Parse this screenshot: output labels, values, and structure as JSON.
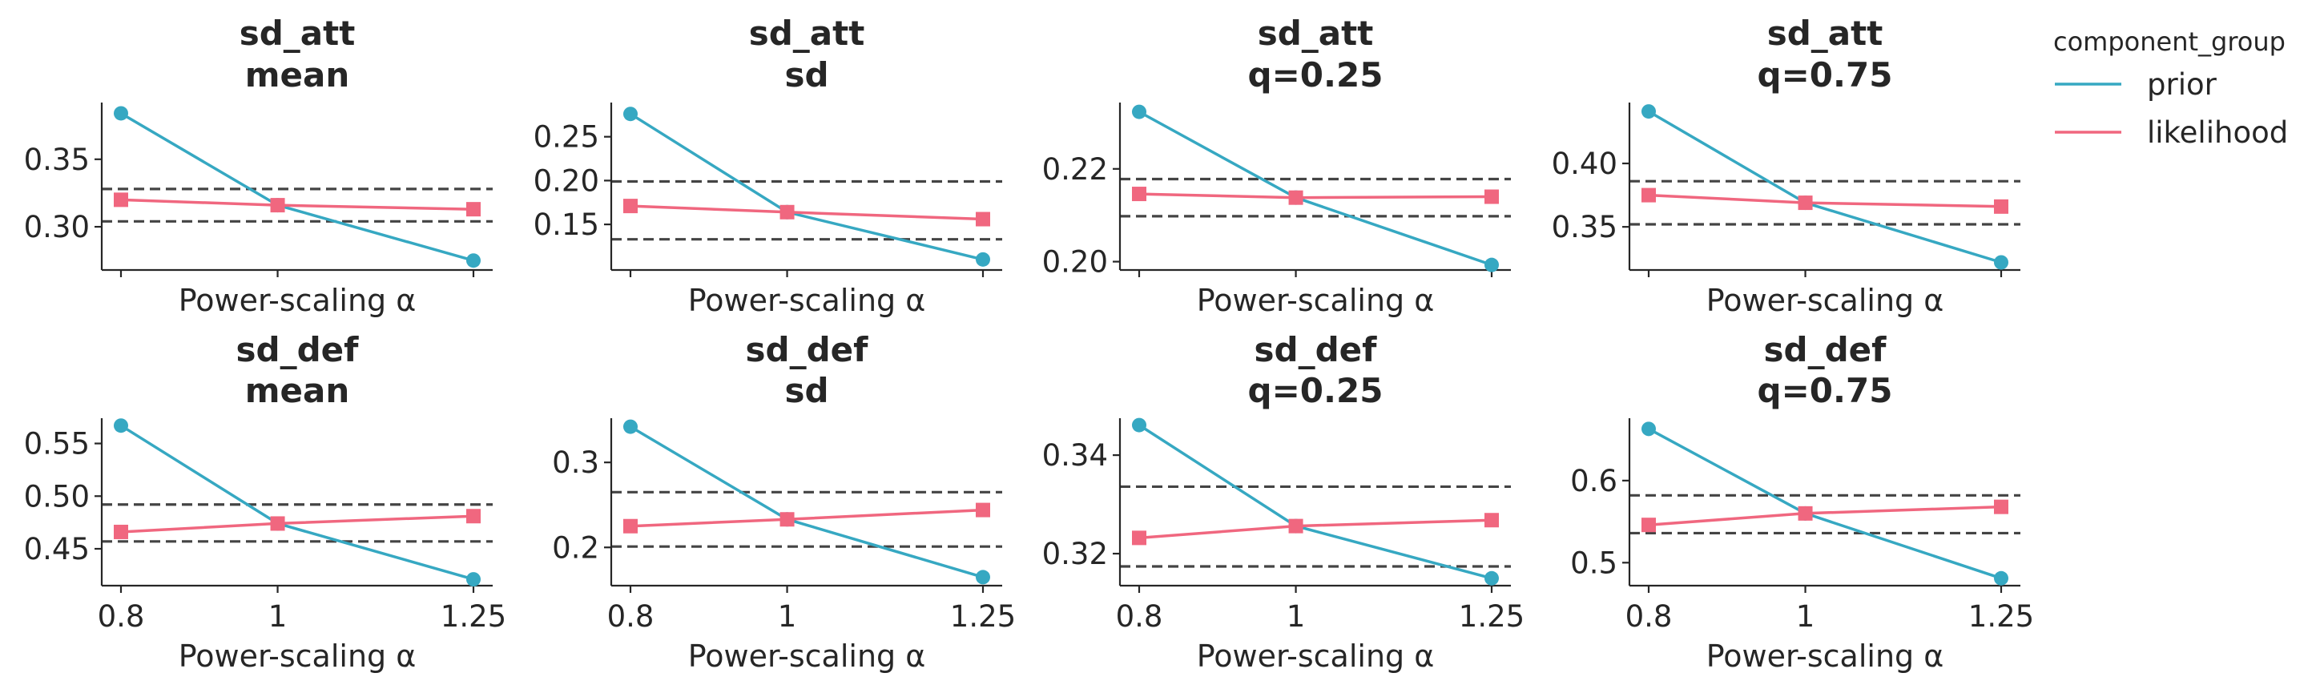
{
  "colors": {
    "prior": "#36a8c2",
    "likelihood": "#f0677f",
    "reference": "#444444"
  },
  "legend": {
    "title": "component_group",
    "entries": [
      {
        "label": "prior",
        "color": "#36a8c2",
        "marker": "circle"
      },
      {
        "label": "likelihood",
        "color": "#f0677f",
        "marker": "square"
      }
    ]
  },
  "chart_data": [
    {
      "type": "line",
      "title": [
        "sd_att",
        "mean"
      ],
      "xlabel": "Power-scaling α",
      "x": [
        0.8,
        1,
        1.25
      ],
      "xticklabels": [
        "0.8",
        "1",
        "1.25"
      ],
      "show_xticklabels": false,
      "ylim": [
        0.268,
        0.392
      ],
      "yticks": [
        0.3,
        0.35
      ],
      "yticklabels": [
        "0.30",
        "0.35"
      ],
      "ref_lines": [
        0.304,
        0.328
      ],
      "series": [
        {
          "name": "prior",
          "values": [
            0.384,
            0.316,
            0.275
          ]
        },
        {
          "name": "likelihood",
          "values": [
            0.32,
            0.316,
            0.313
          ]
        }
      ]
    },
    {
      "type": "line",
      "title": [
        "sd_att",
        "sd"
      ],
      "xlabel": "Power-scaling α",
      "x": [
        0.8,
        1,
        1.25
      ],
      "xticklabels": [
        "0.8",
        "1",
        "1.25"
      ],
      "show_xticklabels": false,
      "ylim": [
        0.098,
        0.289
      ],
      "yticks": [
        0.15,
        0.2,
        0.25
      ],
      "yticklabels": [
        "0.15",
        "0.20",
        "0.25"
      ],
      "ref_lines": [
        0.133,
        0.199
      ],
      "series": [
        {
          "name": "prior",
          "values": [
            0.276,
            0.164,
            0.11
          ]
        },
        {
          "name": "likelihood",
          "values": [
            0.171,
            0.164,
            0.156
          ]
        }
      ]
    },
    {
      "type": "line",
      "title": [
        "sd_att",
        "q=0.25"
      ],
      "xlabel": "Power-scaling α",
      "x": [
        0.8,
        1,
        1.25
      ],
      "xticklabels": [
        "0.8",
        "1",
        "1.25"
      ],
      "show_xticklabels": false,
      "ylim": [
        0.1982,
        0.2343
      ],
      "yticks": [
        0.2,
        0.22
      ],
      "yticklabels": [
        "0.20",
        "0.22"
      ],
      "ref_lines": [
        0.2098,
        0.2178
      ],
      "series": [
        {
          "name": "prior",
          "values": [
            0.2323,
            0.2138,
            0.1993
          ]
        },
        {
          "name": "likelihood",
          "values": [
            0.2146,
            0.2138,
            0.214
          ]
        }
      ]
    },
    {
      "type": "line",
      "title": [
        "sd_att",
        "q=0.75"
      ],
      "xlabel": "Power-scaling α",
      "x": [
        0.8,
        1,
        1.25
      ],
      "xticklabels": [
        "0.8",
        "1",
        "1.25"
      ],
      "show_xticklabels": false,
      "ylim": [
        0.316,
        0.448
      ],
      "yticks": [
        0.35,
        0.4
      ],
      "yticklabels": [
        "0.35",
        "0.40"
      ],
      "ref_lines": [
        0.352,
        0.386
      ],
      "series": [
        {
          "name": "prior",
          "values": [
            0.441,
            0.369,
            0.322
          ]
        },
        {
          "name": "likelihood",
          "values": [
            0.375,
            0.369,
            0.366
          ]
        }
      ]
    },
    {
      "type": "line",
      "title": [
        "sd_def",
        "mean"
      ],
      "xlabel": "Power-scaling α",
      "x": [
        0.8,
        1,
        1.25
      ],
      "xticklabels": [
        "0.8",
        "1",
        "1.25"
      ],
      "show_xticklabels": true,
      "ylim": [
        0.415,
        0.574
      ],
      "yticks": [
        0.45,
        0.5,
        0.55
      ],
      "yticklabels": [
        "0.45",
        "0.50",
        "0.55"
      ],
      "ref_lines": [
        0.457,
        0.492
      ],
      "series": [
        {
          "name": "prior",
          "values": [
            0.567,
            0.474,
            0.421
          ]
        },
        {
          "name": "likelihood",
          "values": [
            0.466,
            0.474,
            0.481
          ]
        }
      ]
    },
    {
      "type": "line",
      "title": [
        "sd_def",
        "sd"
      ],
      "xlabel": "Power-scaling α",
      "x": [
        0.8,
        1,
        1.25
      ],
      "xticklabels": [
        "0.8",
        "1",
        "1.25"
      ],
      "show_xticklabels": true,
      "ylim": [
        0.155,
        0.352
      ],
      "yticks": [
        0.2,
        0.3
      ],
      "yticklabels": [
        "0.2",
        "0.3"
      ],
      "ref_lines": [
        0.201,
        0.265
      ],
      "series": [
        {
          "name": "prior",
          "values": [
            0.342,
            0.233,
            0.165
          ]
        },
        {
          "name": "likelihood",
          "values": [
            0.225,
            0.233,
            0.244
          ]
        }
      ]
    },
    {
      "type": "line",
      "title": [
        "sd_def",
        "q=0.25"
      ],
      "xlabel": "Power-scaling α",
      "x": [
        0.8,
        1,
        1.25
      ],
      "xticklabels": [
        "0.8",
        "1",
        "1.25"
      ],
      "show_xticklabels": true,
      "ylim": [
        0.3135,
        0.3475
      ],
      "yticks": [
        0.32,
        0.34
      ],
      "yticklabels": [
        "0.32",
        "0.34"
      ],
      "ref_lines": [
        0.3174,
        0.3336
      ],
      "series": [
        {
          "name": "prior",
          "values": [
            0.3461,
            0.3256,
            0.315
          ]
        },
        {
          "name": "likelihood",
          "values": [
            0.3232,
            0.3256,
            0.3268
          ]
        }
      ]
    },
    {
      "type": "line",
      "title": [
        "sd_def",
        "q=0.75"
      ],
      "xlabel": "Power-scaling α",
      "x": [
        0.8,
        1,
        1.25
      ],
      "xticklabels": [
        "0.8",
        "1",
        "1.25"
      ],
      "show_xticklabels": true,
      "ylim": [
        0.472,
        0.676
      ],
      "yticks": [
        0.5,
        0.6
      ],
      "yticklabels": [
        "0.5",
        "0.6"
      ],
      "ref_lines": [
        0.536,
        0.582
      ],
      "series": [
        {
          "name": "prior",
          "values": [
            0.663,
            0.56,
            0.481
          ]
        },
        {
          "name": "likelihood",
          "values": [
            0.546,
            0.56,
            0.568
          ]
        }
      ]
    }
  ]
}
